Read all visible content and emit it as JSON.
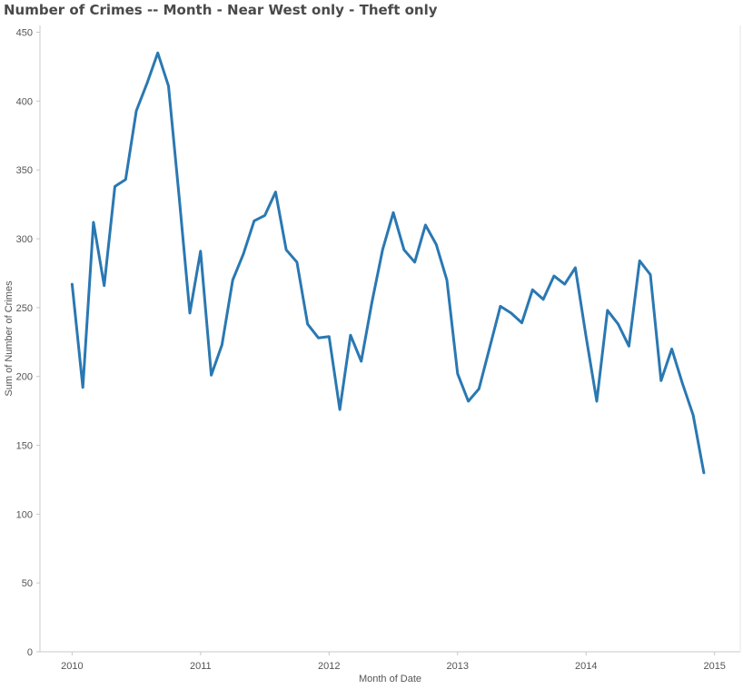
{
  "title": "Number of Crimes -- Month - Near West only - Theft only",
  "chart_data": {
    "type": "line",
    "title": "Number of Crimes -- Month - Near West only - Theft only",
    "xlabel": "Month of Date",
    "ylabel": "Sum of Number of Crimes",
    "xlim": [
      2009.75,
      2015.2
    ],
    "ylim": [
      0,
      455
    ],
    "x_ticks": [
      "2010",
      "2011",
      "2012",
      "2013",
      "2014",
      "2015"
    ],
    "y_ticks": [
      0,
      50,
      100,
      150,
      200,
      250,
      300,
      350,
      400,
      450
    ],
    "grid": false,
    "line_color": "#2a78b2",
    "series": [
      {
        "x": [
          "2010-01",
          "2010-02",
          "2010-03",
          "2010-04",
          "2010-05",
          "2010-06",
          "2010-07",
          "2010-08",
          "2010-09",
          "2010-10",
          "2010-11",
          "2010-12",
          "2011-01",
          "2011-02",
          "2011-03",
          "2011-04",
          "2011-05",
          "2011-06",
          "2011-07",
          "2011-08",
          "2011-09",
          "2011-10",
          "2011-11",
          "2011-12",
          "2012-01",
          "2012-02",
          "2012-03",
          "2012-04",
          "2012-05",
          "2012-06",
          "2012-07",
          "2012-08",
          "2012-09",
          "2012-10",
          "2012-11",
          "2012-12",
          "2013-01",
          "2013-02",
          "2013-03",
          "2013-04",
          "2013-05",
          "2013-06",
          "2013-07",
          "2013-08",
          "2013-09",
          "2013-10",
          "2013-11",
          "2013-12",
          "2014-01",
          "2014-02",
          "2014-03",
          "2014-04",
          "2014-05",
          "2014-06",
          "2014-07",
          "2014-08",
          "2014-09",
          "2014-10",
          "2014-11",
          "2014-12"
        ],
        "values": [
          267,
          192,
          312,
          266,
          338,
          343,
          393,
          413,
          435,
          411,
          330,
          246,
          291,
          201,
          223,
          270,
          289,
          313,
          317,
          334,
          292,
          283,
          238,
          228,
          229,
          176,
          230,
          211,
          254,
          292,
          319,
          292,
          283,
          310,
          296,
          270,
          202,
          182,
          191,
          221,
          251,
          246,
          239,
          263,
          256,
          273,
          267,
          279,
          229,
          182,
          248,
          238,
          222,
          284,
          274,
          197,
          220,
          195,
          172,
          130
        ]
      }
    ]
  }
}
